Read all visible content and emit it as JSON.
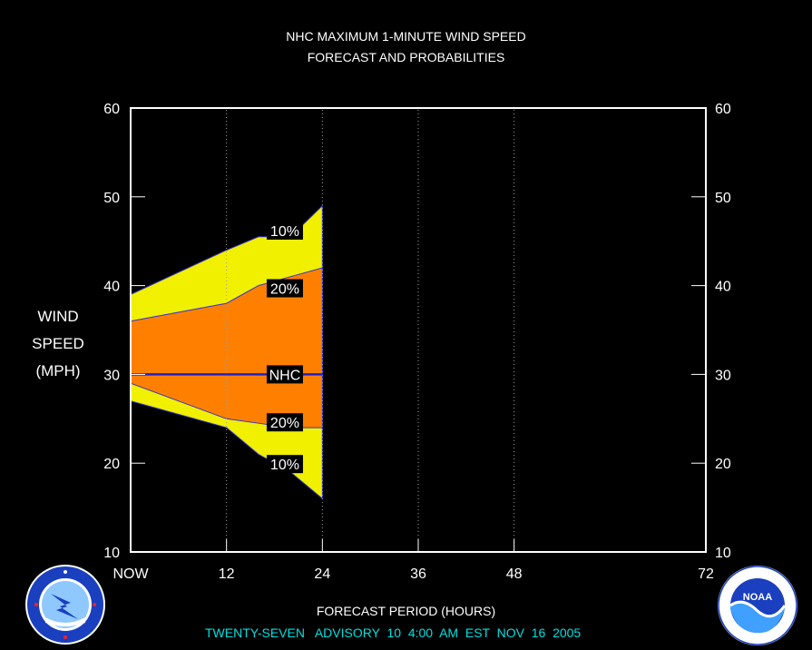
{
  "chart_data": {
    "type": "area",
    "title": "NHC MAXIMUM 1-MINUTE WIND SPEED",
    "subtitle": "FORECAST AND PROBABILITIES",
    "ylabel": [
      "WIND",
      "SPEED",
      "(MPH)"
    ],
    "xlabel": "FORECAST PERIOD (HOURS)",
    "xlim": [
      0,
      72
    ],
    "ylim": [
      10,
      60
    ],
    "x_ticks": [
      0,
      12,
      24,
      36,
      48,
      72
    ],
    "x_tick_labels": [
      "NOW",
      "12",
      "24",
      "36",
      "48",
      "72"
    ],
    "y_ticks": [
      10,
      20,
      30,
      40,
      50,
      60
    ],
    "y_tick_labels": [
      "10",
      "20",
      "30",
      "40",
      "50",
      "60"
    ],
    "vertical_gridlines": [
      12,
      24,
      36,
      48
    ],
    "x": [
      0,
      12,
      16,
      20,
      24
    ],
    "series": [
      {
        "name": "10%",
        "color": "#f0f000",
        "upper": [
          39,
          44,
          45.5,
          45.5,
          49
        ],
        "lower": [
          27,
          24,
          21,
          19,
          16
        ]
      },
      {
        "name": "20%",
        "color": "#ff8000",
        "upper": [
          36,
          38,
          40,
          41,
          42
        ],
        "lower": [
          29,
          25,
          24.5,
          24,
          24
        ]
      },
      {
        "name": "NHC",
        "color": "#2020d0",
        "values": [
          30,
          30,
          30,
          30,
          30
        ]
      }
    ],
    "band_labels": [
      {
        "text": "10%",
        "x": 19.3,
        "y": 46.2
      },
      {
        "text": "20%",
        "x": 19.3,
        "y": 39.7
      },
      {
        "text": "NHC",
        "x": 19.3,
        "y": 30
      },
      {
        "text": "20%",
        "x": 19.3,
        "y": 24.6
      },
      {
        "text": "10%",
        "x": 19.3,
        "y": 19.9
      }
    ]
  },
  "advisory": "TWENTY-SEVEN   ADVISORY  10  4:00  AM  EST  NOV  16  2005",
  "logos": {
    "left": "nws-logo",
    "right": "noaa-logo"
  },
  "colors": {
    "background": "#000000",
    "axis": "#ffffff",
    "gridline": "#a0a0a0",
    "advisory_text": "#00e0e0"
  }
}
